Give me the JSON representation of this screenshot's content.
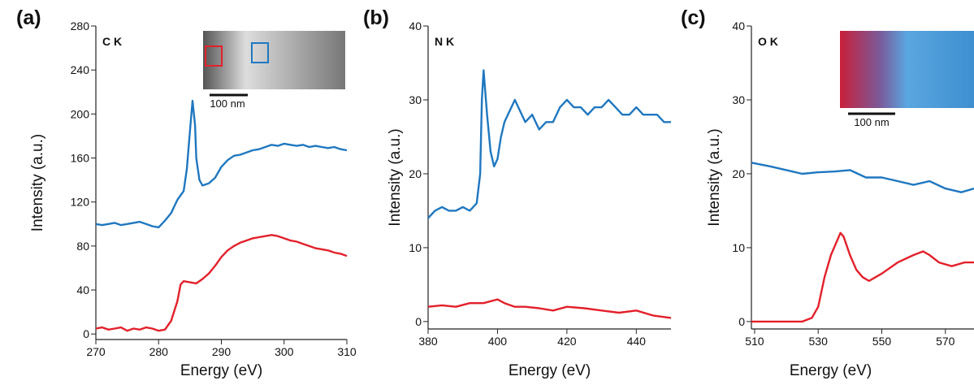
{
  "chart_data": [
    {
      "type": "line",
      "panel_label": "(a)",
      "annotation": "C K",
      "scale_bar_label": "100 nm",
      "xlabel": "Energy (eV)",
      "ylabel": "Intensity (a.u.)",
      "xlim": [
        270,
        310
      ],
      "xticks": [
        270,
        280,
        290,
        300,
        310
      ],
      "ylim": [
        -5,
        280
      ],
      "yticks": [
        0,
        40,
        80,
        120,
        160,
        200,
        240,
        280
      ],
      "series": [
        {
          "color": "#1f77c0",
          "x": [
            270,
            271,
            272,
            273,
            274,
            275,
            276,
            277,
            278,
            279,
            280,
            281,
            282,
            283,
            284,
            284.5,
            285,
            285.4,
            285.8,
            286,
            286.5,
            287,
            288,
            289,
            290,
            291,
            292,
            293,
            294,
            295,
            296,
            297,
            298,
            299,
            300,
            301,
            302,
            303,
            304,
            305,
            306,
            307,
            308,
            309,
            310
          ],
          "values": [
            100,
            99,
            100,
            101,
            99,
            100,
            101,
            102,
            100,
            98,
            97,
            103,
            110,
            122,
            130,
            150,
            185,
            212,
            190,
            160,
            140,
            135,
            137,
            142,
            152,
            158,
            162,
            163,
            165,
            167,
            168,
            170,
            172,
            171,
            173,
            172,
            171,
            172,
            170,
            171,
            170,
            169,
            170,
            168,
            167
          ]
        },
        {
          "color": "#e3202a",
          "x": [
            270,
            271,
            272,
            273,
            274,
            275,
            276,
            277,
            278,
            279,
            280,
            281,
            282,
            283,
            283.5,
            284,
            285,
            286,
            287,
            288,
            289,
            290,
            291,
            292,
            293,
            294,
            295,
            296,
            297,
            298,
            299,
            300,
            301,
            302,
            303,
            304,
            305,
            306,
            307,
            308,
            309,
            310
          ],
          "values": [
            5,
            6,
            4,
            5,
            6,
            3,
            5,
            4,
            6,
            5,
            3,
            4,
            12,
            30,
            45,
            48,
            47,
            46,
            50,
            55,
            62,
            70,
            76,
            80,
            83,
            85,
            87,
            88,
            89,
            90,
            89,
            87,
            85,
            84,
            82,
            80,
            78,
            77,
            76,
            74,
            73,
            71
          ]
        }
      ]
    },
    {
      "type": "line",
      "panel_label": "(b)",
      "annotation": "N K",
      "xlabel": "Energy (eV)",
      "ylabel": "Intensity (a.u.)",
      "xlim": [
        380,
        450
      ],
      "xticks": [
        380,
        400,
        420,
        440
      ],
      "ylim": [
        -1,
        40
      ],
      "yticks": [
        0,
        10,
        20,
        30,
        40
      ],
      "series": [
        {
          "color": "#1f77c0",
          "x": [
            380,
            382,
            384,
            386,
            388,
            390,
            392,
            394,
            395,
            395.5,
            396,
            397,
            398,
            399,
            400,
            401,
            402,
            403,
            404,
            405,
            406,
            408,
            410,
            412,
            414,
            416,
            418,
            420,
            422,
            424,
            426,
            428,
            430,
            432,
            434,
            436,
            438,
            440,
            442,
            444,
            446,
            448,
            450
          ],
          "values": [
            14,
            15,
            15.5,
            15,
            15,
            15.5,
            15,
            16,
            20,
            30,
            34,
            28,
            23,
            21,
            22,
            25,
            27,
            28,
            29,
            30,
            29,
            27,
            28,
            26,
            27,
            27,
            29,
            30,
            29,
            29,
            28,
            29,
            29,
            30,
            29,
            28,
            28,
            29,
            28,
            28,
            28,
            27,
            27
          ]
        },
        {
          "color": "#e3202a",
          "x": [
            380,
            384,
            388,
            392,
            396,
            400,
            402,
            405,
            408,
            412,
            416,
            420,
            425,
            430,
            435,
            440,
            445,
            450
          ],
          "values": [
            2,
            2.2,
            2,
            2.5,
            2.5,
            3,
            2.5,
            2,
            2,
            1.8,
            1.5,
            2,
            1.8,
            1.5,
            1.2,
            1.5,
            0.8,
            0.5
          ]
        }
      ]
    },
    {
      "type": "line",
      "panel_label": "(c)",
      "annotation": "O K",
      "scale_bar_label": "100 nm",
      "xlabel": "Energy (eV)",
      "ylabel": "Intensity (a.u.)",
      "xlim": [
        509,
        579
      ],
      "xticks": [
        510,
        530,
        550,
        570
      ],
      "ylim": [
        -1,
        40
      ],
      "yticks": [
        0,
        10,
        20,
        30,
        40
      ],
      "series": [
        {
          "color": "#1f77c0",
          "x": [
            509,
            515,
            520,
            525,
            530,
            535,
            540,
            545,
            550,
            555,
            560,
            565,
            570,
            575,
            579
          ],
          "values": [
            21.5,
            21,
            20.5,
            20,
            20.2,
            20.3,
            20.5,
            19.5,
            19.5,
            19,
            18.5,
            19,
            18,
            17.5,
            18
          ]
        },
        {
          "color": "#e3202a",
          "x": [
            509,
            515,
            520,
            525,
            528,
            530,
            532,
            534,
            536,
            537,
            538,
            540,
            542,
            544,
            546,
            548,
            550,
            555,
            560,
            563,
            565,
            568,
            572,
            576,
            579
          ],
          "values": [
            0,
            0,
            0,
            0,
            0.5,
            2,
            6,
            9,
            11,
            12,
            11.5,
            9,
            7,
            6,
            5.5,
            6,
            6.5,
            8,
            9,
            9.5,
            9,
            8,
            7.5,
            8,
            8
          ]
        }
      ]
    }
  ]
}
